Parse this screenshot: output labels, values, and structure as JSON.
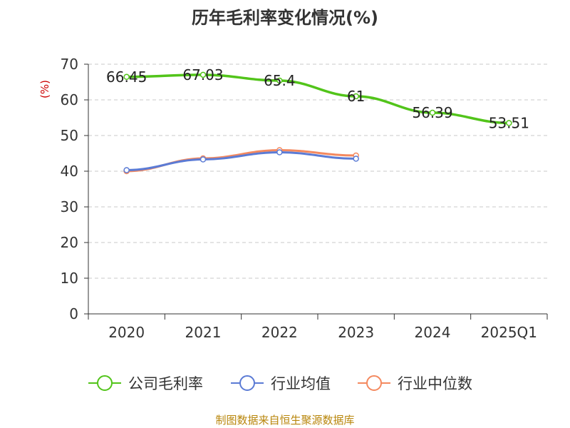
{
  "chart_data": {
    "type": "line",
    "title": "历年毛利率变化情况(%)",
    "ylabel": "(%)",
    "xlabel": "",
    "ylim": [
      0,
      70
    ],
    "yticks": [
      0,
      10,
      20,
      30,
      40,
      50,
      60,
      70
    ],
    "categories": [
      "2020",
      "2021",
      "2022",
      "2023",
      "2024",
      "2025Q1"
    ],
    "grid": true,
    "legend_position": "bottom",
    "series": [
      {
        "name": "公司毛利率",
        "color": "#52c41a",
        "values": [
          66.45,
          67.03,
          65.4,
          61,
          56.39,
          53.51
        ],
        "labels": [
          "66.45",
          "67.03",
          "65.4",
          "61",
          "56.39",
          "53.51"
        ]
      },
      {
        "name": "行业均值",
        "color": "#5b7bd5",
        "values": [
          40.3,
          43.3,
          45.3,
          43.5,
          null,
          null
        ],
        "labels": []
      },
      {
        "name": "行业中位数",
        "color": "#f4895f",
        "values": [
          40.0,
          43.6,
          45.9,
          44.4,
          null,
          null
        ],
        "labels": []
      }
    ]
  },
  "footer": "制图数据来自恒生聚源数据库"
}
